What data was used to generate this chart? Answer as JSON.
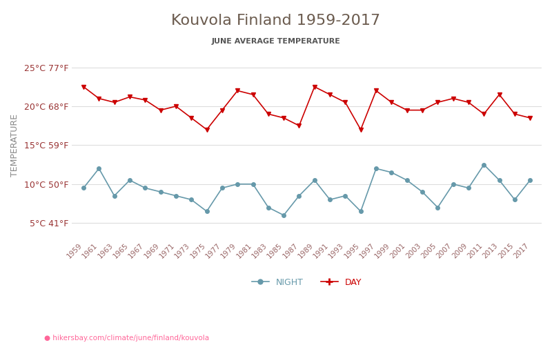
{
  "title": "Kouvola Finland 1959-2017",
  "subtitle": "JUNE AVERAGE TEMPERATURE",
  "ylabel": "TEMPERATURE",
  "xlabel_url": "hikersbay.com/climate/june/finland/kouvola",
  "years": [
    1959,
    1961,
    1963,
    1965,
    1967,
    1969,
    1971,
    1973,
    1975,
    1977,
    1979,
    1981,
    1983,
    1985,
    1987,
    1989,
    1991,
    1993,
    1995,
    1997,
    1999,
    2001,
    2003,
    2005,
    2007,
    2009,
    2011,
    2013,
    2015,
    2017
  ],
  "day_temps": [
    22.5,
    21.0,
    20.5,
    21.2,
    20.8,
    19.5,
    20.0,
    18.5,
    17.0,
    19.5,
    22.0,
    21.5,
    19.0,
    18.5,
    17.5,
    22.5,
    21.5,
    20.5,
    17.0,
    22.0,
    20.5,
    19.5,
    19.5,
    20.5,
    21.0,
    20.5,
    19.0,
    21.5,
    19.0,
    18.5
  ],
  "night_temps": [
    9.5,
    12.0,
    8.5,
    10.5,
    9.5,
    9.0,
    8.5,
    8.0,
    6.5,
    9.5,
    10.0,
    10.0,
    7.0,
    6.0,
    8.5,
    10.5,
    8.0,
    8.5,
    6.5,
    12.0,
    11.5,
    10.5,
    9.0,
    7.0,
    10.0,
    9.5,
    12.5,
    10.5,
    8.0,
    10.5
  ],
  "yticks_c": [
    5,
    10,
    15,
    20,
    25
  ],
  "yticks_f": [
    41,
    50,
    59,
    68,
    77
  ],
  "ylim": [
    3,
    27
  ],
  "title_color": "#6b5b4e",
  "subtitle_color": "#555555",
  "day_color": "#cc0000",
  "night_color": "#6699aa",
  "grid_color": "#dddddd",
  "ylabel_color": "#888888",
  "ytick_color": "#993333",
  "xtick_color": "#996666",
  "url_color": "#ff6699",
  "bg_color": "#ffffff"
}
